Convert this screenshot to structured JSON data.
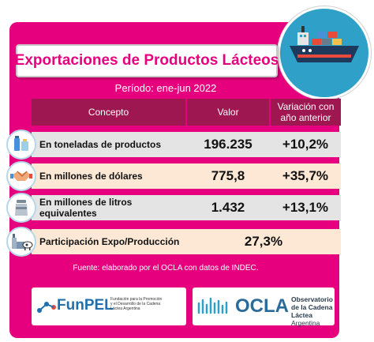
{
  "title": "Exportaciones de Productos Lácteos",
  "period": "Período: ene-jun 2022",
  "headers": {
    "concept": "Concepto",
    "value": "Valor",
    "variation_line1": "Variación con",
    "variation_line2": "año anterior"
  },
  "rows": [
    {
      "concept": "En toneladas de productos",
      "value": "196.235",
      "variation": "+10,2%",
      "icon": "dairy-products-icon"
    },
    {
      "concept": "En millones de dólares",
      "value": "775,8",
      "variation": "+35,7%",
      "icon": "handshake-icon"
    },
    {
      "concept": "En millones de litros equivalentes",
      "value": "1.432",
      "variation": "+13,1%",
      "icon": "milk-can-icon"
    }
  ],
  "participation": {
    "concept": "Participación Expo/Producción",
    "value": "27,3%",
    "icon": "factory-cow-icon"
  },
  "source": "Fuente: elaborado por el OCLA con datos de INDEC.",
  "logos": {
    "funpel_name": "FunPEL",
    "funpel_desc_1": "Fundación para la Promoción",
    "funpel_desc_2": "y el Desarrollo de la Cadena",
    "funpel_desc_3": "Láctea Argentina",
    "ocla_name": "OCLA",
    "ocla_desc_1": "Observatorio",
    "ocla_desc_2": "de la Cadena Láctea",
    "ocla_desc_3": "Argentina"
  },
  "colors": {
    "panel": "#e6007e",
    "header": "#9e1750",
    "row_gray": "#e4e4e4",
    "row_beige": "#fde8d6",
    "ship_bg": "#2fa0c7"
  }
}
